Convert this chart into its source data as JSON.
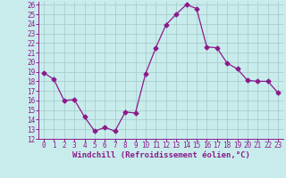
{
  "x": [
    0,
    1,
    2,
    3,
    4,
    5,
    6,
    7,
    8,
    9,
    10,
    11,
    12,
    13,
    14,
    15,
    16,
    17,
    18,
    19,
    20,
    21,
    22,
    23
  ],
  "y": [
    18.9,
    18.2,
    16.0,
    16.1,
    14.3,
    12.8,
    13.2,
    12.8,
    14.8,
    14.7,
    18.8,
    21.5,
    23.9,
    25.0,
    26.0,
    25.6,
    21.6,
    21.5,
    19.9,
    19.3,
    18.1,
    18.0,
    18.0,
    16.8
  ],
  "line_color": "#8b1a8b",
  "marker": "D",
  "marker_size": 2.5,
  "bg_color": "#c8ecec",
  "grid_color": "#b0d8d8",
  "xlabel": "Windchill (Refroidissement éolien,°C)",
  "ylim": [
    12,
    26
  ],
  "xlim": [
    -0.5,
    23.5
  ],
  "yticks": [
    12,
    13,
    14,
    15,
    16,
    17,
    18,
    19,
    20,
    21,
    22,
    23,
    24,
    25,
    26
  ],
  "xticks": [
    0,
    1,
    2,
    3,
    4,
    5,
    6,
    7,
    8,
    9,
    10,
    11,
    12,
    13,
    14,
    15,
    16,
    17,
    18,
    19,
    20,
    21,
    22,
    23
  ],
  "tick_color": "#8b1a8b",
  "label_fontsize": 6.5,
  "tick_fontsize": 5.5
}
